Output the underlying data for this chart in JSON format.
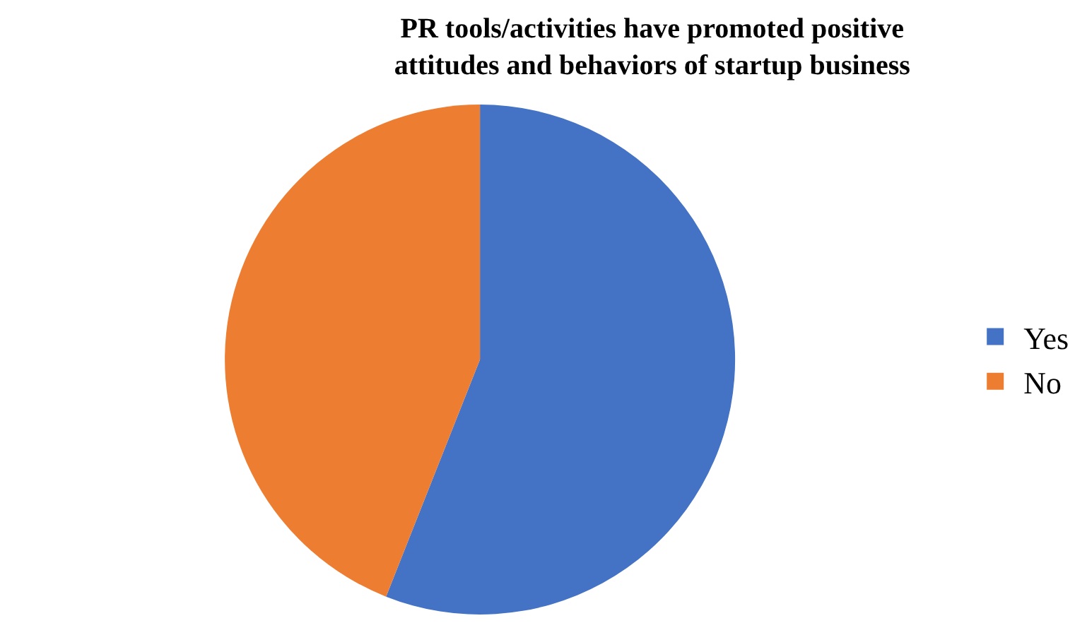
{
  "chart_data": {
    "type": "pie",
    "title": "PR tools/activities have promoted positive attitudes and behaviors of startup business",
    "categories": [
      "Yes",
      "No"
    ],
    "values": [
      56,
      44
    ],
    "colors": [
      "#4472c4",
      "#ed7d31"
    ],
    "legend": "right"
  }
}
